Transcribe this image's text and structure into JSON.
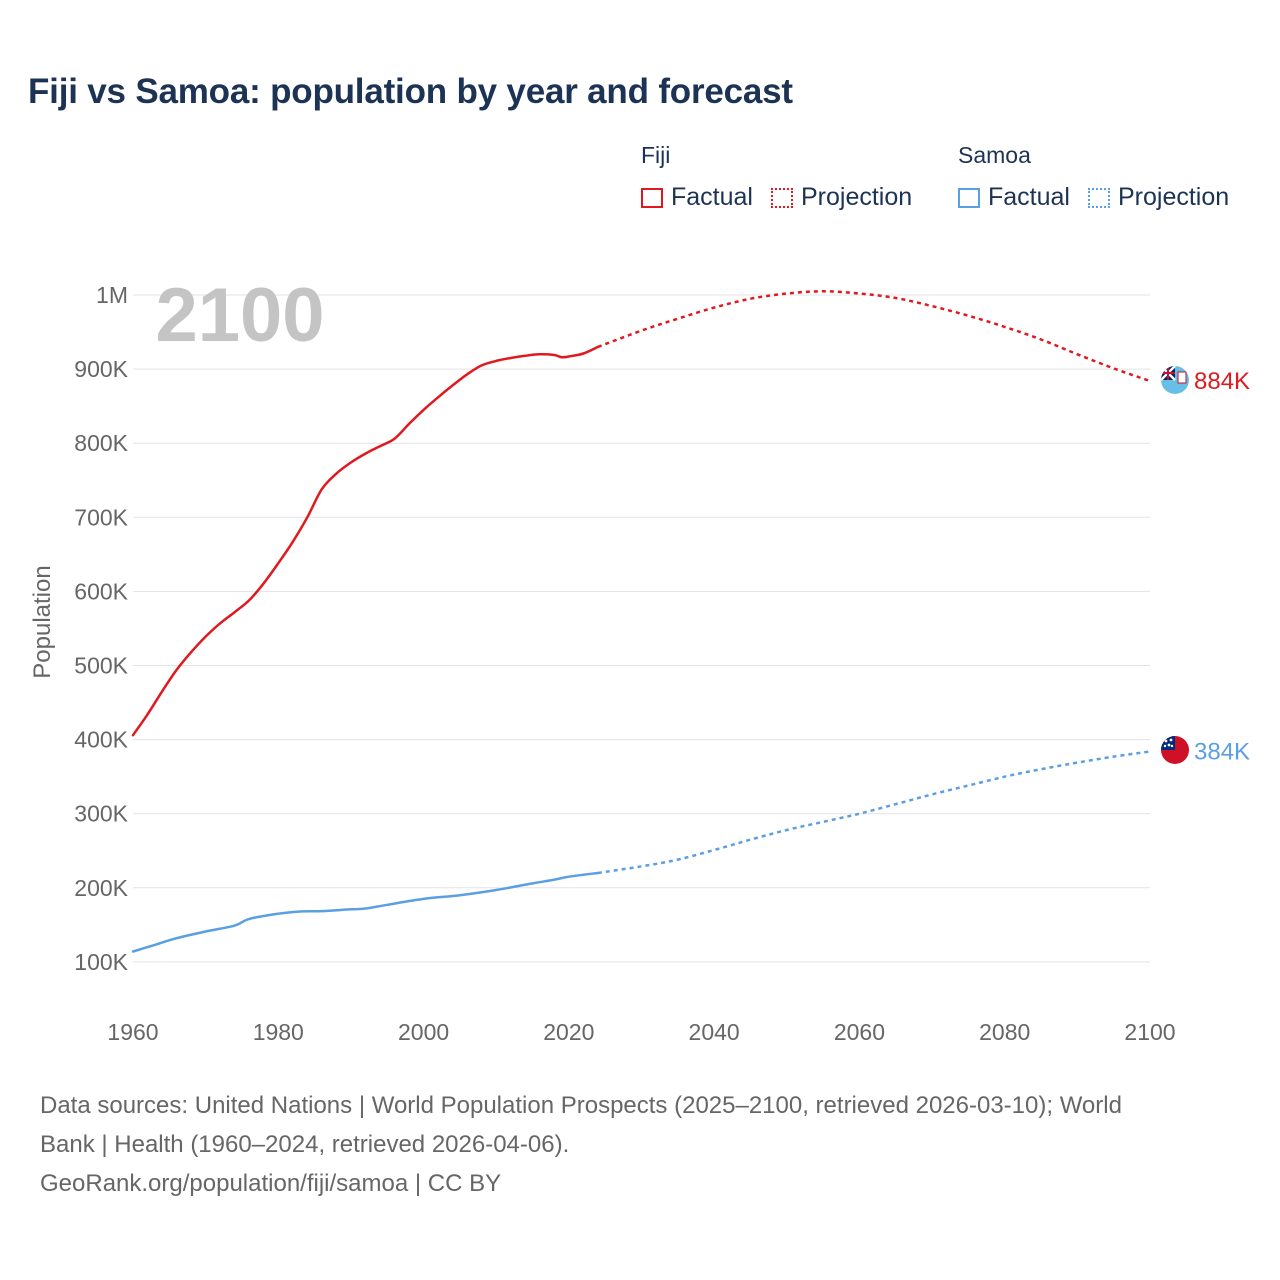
{
  "title": "Fiji vs Samoa: population by year and forecast",
  "legend": {
    "groups": [
      {
        "name": "Fiji",
        "color": "#e0191f",
        "factual_label": "Factual",
        "projection_label": "Projection"
      },
      {
        "name": "Samoa",
        "color": "#5b9fe3",
        "factual_label": "Factual",
        "projection_label": "Projection"
      }
    ]
  },
  "chart_data": {
    "type": "line",
    "title": "Fiji vs Samoa: population by year and forecast",
    "xlabel": "",
    "ylabel": "Population",
    "xlim": [
      1960,
      2100
    ],
    "ylim": [
      0,
      1000000
    ],
    "x_ticks": [
      1960,
      1980,
      2000,
      2020,
      2040,
      2060,
      2080,
      2100
    ],
    "x_tick_labels": [
      "1960",
      "1980",
      "2000",
      "2020",
      "2040",
      "2060",
      "2080",
      "2100"
    ],
    "y_ticks": [
      100000,
      200000,
      300000,
      400000,
      500000,
      600000,
      700000,
      800000,
      900000,
      1000000
    ],
    "y_tick_labels": [
      "100K",
      "200K",
      "300K",
      "400K",
      "500K",
      "600K",
      "700K",
      "800K",
      "900K",
      "1M"
    ],
    "year_overlay": "2100",
    "grid": true,
    "series": [
      {
        "name": "Fiji",
        "color": "#e0191f",
        "end_label": "884K",
        "factual": [
          [
            1960,
            406000
          ],
          [
            1962,
            434000
          ],
          [
            1964,
            465000
          ],
          [
            1966,
            494000
          ],
          [
            1968,
            518000
          ],
          [
            1970,
            539000
          ],
          [
            1972,
            557000
          ],
          [
            1974,
            572000
          ],
          [
            1976,
            588000
          ],
          [
            1978,
            611000
          ],
          [
            1980,
            638000
          ],
          [
            1982,
            667000
          ],
          [
            1984,
            700000
          ],
          [
            1986,
            738000
          ],
          [
            1988,
            759000
          ],
          [
            1990,
            774000
          ],
          [
            1992,
            786000
          ],
          [
            1994,
            796000
          ],
          [
            1996,
            806000
          ],
          [
            1998,
            826000
          ],
          [
            2000,
            845000
          ],
          [
            2002,
            862000
          ],
          [
            2004,
            878000
          ],
          [
            2006,
            893000
          ],
          [
            2008,
            905000
          ],
          [
            2010,
            911000
          ],
          [
            2012,
            915000
          ],
          [
            2014,
            918000
          ],
          [
            2016,
            920000
          ],
          [
            2018,
            919000
          ],
          [
            2019,
            916000
          ],
          [
            2020,
            917000
          ],
          [
            2022,
            921000
          ],
          [
            2024,
            930000
          ]
        ],
        "projection": [
          [
            2024,
            930000
          ],
          [
            2030,
            952000
          ],
          [
            2035,
            968000
          ],
          [
            2040,
            983000
          ],
          [
            2045,
            995000
          ],
          [
            2050,
            1002000
          ],
          [
            2055,
            1005000
          ],
          [
            2060,
            1002000
          ],
          [
            2065,
            996000
          ],
          [
            2070,
            985000
          ],
          [
            2075,
            972000
          ],
          [
            2080,
            957000
          ],
          [
            2085,
            940000
          ],
          [
            2090,
            920000
          ],
          [
            2095,
            901000
          ],
          [
            2100,
            884000
          ]
        ]
      },
      {
        "name": "Samoa",
        "color": "#5b9fe3",
        "end_label": "384K",
        "factual": [
          [
            1960,
            114000
          ],
          [
            1963,
            123000
          ],
          [
            1966,
            132000
          ],
          [
            1970,
            141000
          ],
          [
            1974,
            149000
          ],
          [
            1976,
            158000
          ],
          [
            1980,
            165000
          ],
          [
            1983,
            168000
          ],
          [
            1986,
            168500
          ],
          [
            1990,
            171000
          ],
          [
            1992,
            172000
          ],
          [
            1995,
            177000
          ],
          [
            2000,
            185000
          ],
          [
            2005,
            190000
          ],
          [
            2010,
            197000
          ],
          [
            2015,
            206000
          ],
          [
            2018,
            211000
          ],
          [
            2020,
            215000
          ],
          [
            2024,
            220000
          ]
        ],
        "projection": [
          [
            2024,
            220000
          ],
          [
            2030,
            229000
          ],
          [
            2035,
            238000
          ],
          [
            2040,
            251000
          ],
          [
            2045,
            265000
          ],
          [
            2050,
            278000
          ],
          [
            2055,
            289000
          ],
          [
            2060,
            300000
          ],
          [
            2065,
            313000
          ],
          [
            2070,
            326000
          ],
          [
            2075,
            338000
          ],
          [
            2080,
            350000
          ],
          [
            2085,
            360000
          ],
          [
            2090,
            369000
          ],
          [
            2095,
            377000
          ],
          [
            2100,
            384000
          ]
        ]
      }
    ]
  },
  "sources": {
    "line1": "Data sources: United Nations | World Population Prospects (2025–2100, retrieved 2026-03-10); World",
    "line2": "Bank | Health (1960–2024, retrieved 2026-04-06).",
    "line3": "GeoRank.org/population/fiji/samoa | CC BY"
  }
}
